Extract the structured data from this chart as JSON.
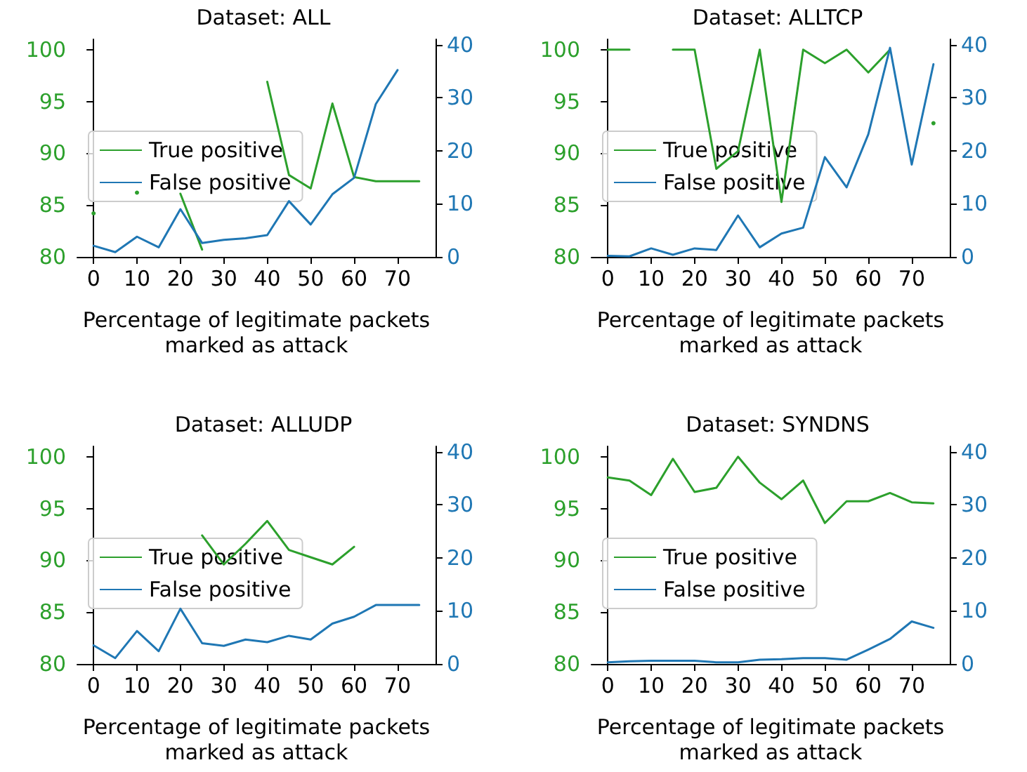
{
  "chart_data": [
    {
      "type": "line",
      "title": "Dataset: ALL",
      "xlabel": "Percentage of legitimate packets\nmarked as attack",
      "x": [
        0,
        5,
        10,
        15,
        20,
        25,
        30,
        35,
        40,
        45,
        50,
        55,
        60,
        65,
        70,
        75
      ],
      "xlim": [
        -3.75,
        78.75
      ],
      "xticks": [
        0,
        10,
        20,
        30,
        40,
        50,
        60,
        70
      ],
      "ylim": [
        80,
        101
      ],
      "yticks": [
        80,
        85,
        90,
        95,
        100
      ],
      "y2lim": [
        0,
        41
      ],
      "y2ticks": [
        0,
        10,
        20,
        30,
        40
      ],
      "legend": "center left",
      "grid": false,
      "marker": "none",
      "line_style": "solid",
      "series": [
        {
          "name": "True positive",
          "color": "#2ca02c",
          "values": [
            84.2,
            null,
            86.2,
            null,
            86.1,
            80.7,
            null,
            null,
            96.9,
            87.9,
            86.6,
            94.8,
            87.7,
            87.3,
            87.3,
            87.3
          ]
        },
        {
          "name": "False positive",
          "color": "#1f77b4",
          "axis": "y2",
          "values": [
            2.1,
            0.9,
            3.8,
            1.8,
            9.0,
            2.6,
            3.2,
            3.5,
            4.1,
            10.5,
            6.1,
            11.8,
            14.9,
            28.8,
            35.2,
            null
          ]
        }
      ]
    },
    {
      "type": "line",
      "title": "Dataset: ALLTCP",
      "xlabel": "Percentage of legitimate packets\nmarked as attack",
      "x": [
        0,
        5,
        10,
        15,
        20,
        25,
        30,
        35,
        40,
        45,
        50,
        55,
        60,
        65,
        70,
        75
      ],
      "xlim": [
        -3.75,
        78.75
      ],
      "xticks": [
        0,
        10,
        20,
        30,
        40,
        50,
        60,
        70
      ],
      "ylim": [
        80,
        101
      ],
      "yticks": [
        80,
        85,
        90,
        95,
        100
      ],
      "y2lim": [
        0,
        41
      ],
      "y2ticks": [
        0,
        10,
        20,
        30,
        40
      ],
      "legend": "center left",
      "grid": false,
      "marker": "none",
      "line_style": "solid",
      "series": [
        {
          "name": "True positive",
          "color": "#2ca02c",
          "values": [
            100,
            100,
            null,
            100,
            100,
            88.5,
            90.2,
            100,
            85.3,
            100,
            98.7,
            100,
            97.8,
            100,
            null,
            92.9
          ]
        },
        {
          "name": "False positive",
          "color": "#1f77b4",
          "axis": "y2",
          "values": [
            0.2,
            0.1,
            1.6,
            0.4,
            1.6,
            1.3,
            7.8,
            1.8,
            4.4,
            5.5,
            18.8,
            13.1,
            23.1,
            39.4,
            17.4,
            36.3
          ]
        }
      ]
    },
    {
      "type": "line",
      "title": "Dataset: ALLUDP",
      "xlabel": "Percentage of legitimate packets\nmarked as attack",
      "x": [
        0,
        5,
        10,
        15,
        20,
        25,
        30,
        35,
        40,
        45,
        50,
        55,
        60,
        65,
        70,
        75
      ],
      "xlim": [
        -3.75,
        78.75
      ],
      "xticks": [
        0,
        10,
        20,
        30,
        40,
        50,
        60,
        70
      ],
      "ylim": [
        80,
        101
      ],
      "yticks": [
        80,
        85,
        90,
        95,
        100
      ],
      "y2lim": [
        0,
        41
      ],
      "y2ticks": [
        0,
        10,
        20,
        30,
        40
      ],
      "legend": "center left",
      "grid": false,
      "marker": "none",
      "line_style": "solid",
      "series": [
        {
          "name": "True positive",
          "color": "#2ca02c",
          "values": [
            null,
            null,
            null,
            null,
            null,
            92.4,
            89.6,
            91.6,
            93.8,
            91.0,
            90.3,
            89.6,
            91.3,
            null,
            null,
            null
          ]
        },
        {
          "name": "False positive",
          "color": "#1f77b4",
          "axis": "y2",
          "values": [
            3.5,
            1.1,
            6.2,
            2.4,
            10.4,
            3.9,
            3.4,
            4.6,
            4.1,
            5.3,
            4.6,
            7.6,
            8.9,
            11.1,
            11.1,
            11.1
          ]
        }
      ]
    },
    {
      "type": "line",
      "title": "Dataset: SYNDNS",
      "xlabel": "Percentage of legitimate packets\nmarked as attack",
      "x": [
        0,
        5,
        10,
        15,
        20,
        25,
        30,
        35,
        40,
        45,
        50,
        55,
        60,
        65,
        70,
        75
      ],
      "xlim": [
        -3.75,
        78.75
      ],
      "xticks": [
        0,
        10,
        20,
        30,
        40,
        50,
        60,
        70
      ],
      "ylim": [
        80,
        101
      ],
      "yticks": [
        80,
        85,
        90,
        95,
        100
      ],
      "y2lim": [
        0,
        41
      ],
      "y2ticks": [
        0,
        10,
        20,
        30,
        40
      ],
      "legend": "center left",
      "grid": false,
      "marker": "none",
      "line_style": "solid",
      "series": [
        {
          "name": "True positive",
          "color": "#2ca02c",
          "values": [
            98.0,
            97.7,
            96.3,
            99.8,
            96.6,
            97.0,
            100.0,
            97.5,
            95.9,
            97.7,
            93.6,
            95.7,
            95.7,
            96.5,
            95.6,
            95.5
          ]
        },
        {
          "name": "False positive",
          "color": "#1f77b4",
          "axis": "y2",
          "values": [
            0.3,
            0.5,
            0.6,
            0.6,
            0.6,
            0.3,
            0.3,
            0.8,
            0.9,
            1.1,
            1.1,
            0.8,
            2.7,
            4.7,
            8.0,
            6.8
          ]
        }
      ]
    }
  ]
}
